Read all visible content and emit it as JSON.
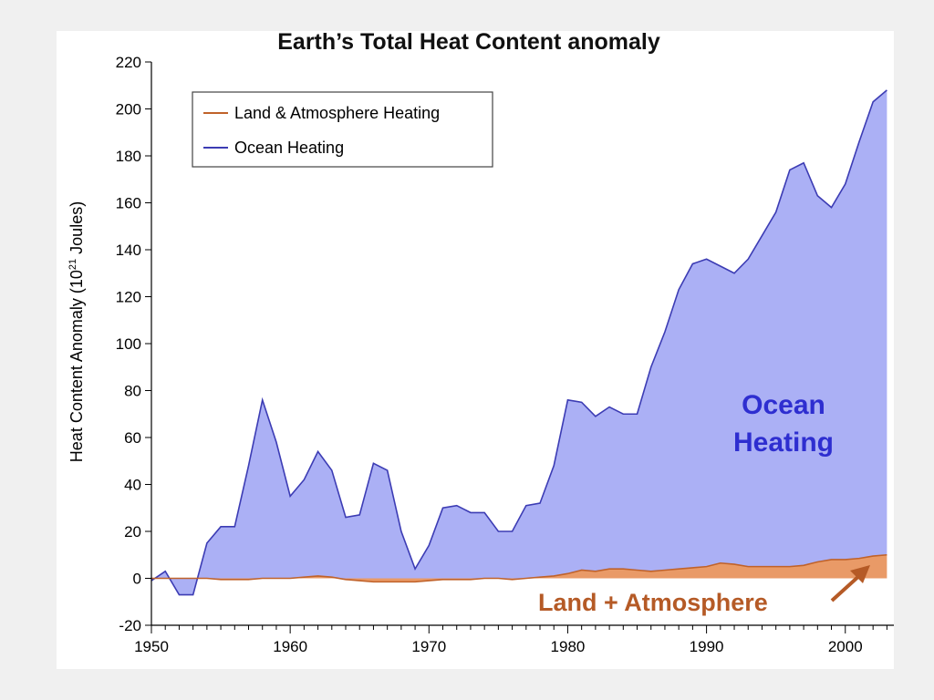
{
  "chart_data": {
    "type": "area",
    "title": "Earth’s Total Heat Content anomaly",
    "ylabel": "Heat Content Anomaly (10",
    "ylabel_superscript": "21",
    "ylabel_tail": " Joules)",
    "xlabel": "",
    "xlim": [
      1950,
      2003.5
    ],
    "ylim": [
      -20,
      220
    ],
    "x_ticks": [
      1950,
      1960,
      1970,
      1980,
      1990,
      2000
    ],
    "y_ticks": [
      -20,
      0,
      20,
      40,
      60,
      80,
      100,
      120,
      140,
      160,
      180,
      200,
      220
    ],
    "grid": false,
    "legend": {
      "placement": "top-left",
      "entries": [
        {
          "name": "Land & Atmosphere Heating",
          "color": "#c0622a"
        },
        {
          "name": "Ocean Heating",
          "color": "#3c3cb4"
        }
      ]
    },
    "series": [
      {
        "name": "Land & Atmosphere Heating",
        "line_color": "#c0622a",
        "fill_color": "#e99a67",
        "x": [
          1950,
          1951,
          1952,
          1953,
          1954,
          1955,
          1956,
          1957,
          1958,
          1959,
          1960,
          1961,
          1962,
          1963,
          1964,
          1965,
          1966,
          1967,
          1968,
          1969,
          1970,
          1971,
          1972,
          1973,
          1974,
          1975,
          1976,
          1977,
          1978,
          1979,
          1980,
          1981,
          1982,
          1983,
          1984,
          1985,
          1986,
          1987,
          1988,
          1989,
          1990,
          1991,
          1992,
          1993,
          1994,
          1995,
          1996,
          1997,
          1998,
          1999,
          2000,
          2001,
          2002,
          2003
        ],
        "values": [
          0,
          0,
          0,
          0,
          0,
          -0.5,
          -0.5,
          -0.5,
          0,
          0,
          0,
          0.5,
          1,
          0.5,
          -0.5,
          -1,
          -1.5,
          -1.5,
          -1.5,
          -1.5,
          -1,
          -0.5,
          -0.5,
          -0.5,
          0,
          0,
          -0.5,
          0,
          0.5,
          1,
          2,
          3.5,
          3,
          4,
          4,
          3.5,
          3,
          3.5,
          4,
          4.5,
          5,
          6.5,
          6,
          5,
          5,
          5,
          5,
          5.5,
          7,
          8,
          8,
          8.5,
          9.5,
          10
        ]
      },
      {
        "name": "Ocean Heating",
        "line_color": "#3c3cb4",
        "fill_color": "#abb0f5",
        "x": [
          1950,
          1951,
          1952,
          1953,
          1954,
          1955,
          1956,
          1957,
          1958,
          1959,
          1960,
          1961,
          1962,
          1963,
          1964,
          1965,
          1966,
          1967,
          1968,
          1969,
          1970,
          1971,
          1972,
          1973,
          1974,
          1975,
          1976,
          1977,
          1978,
          1979,
          1980,
          1981,
          1982,
          1983,
          1984,
          1985,
          1986,
          1987,
          1988,
          1989,
          1990,
          1991,
          1992,
          1993,
          1994,
          1995,
          1996,
          1997,
          1998,
          1999,
          2000,
          2001,
          2002,
          2003
        ],
        "values": [
          -1,
          3,
          -7,
          -7,
          15,
          22,
          22,
          48,
          76,
          58,
          35,
          42,
          54,
          46,
          26,
          27,
          49,
          46,
          20,
          4,
          14,
          30,
          31,
          28,
          28,
          20,
          20,
          31,
          32,
          48,
          76,
          75,
          69,
          73,
          70,
          70,
          90,
          105,
          123,
          134,
          136,
          133,
          130,
          136,
          146,
          156,
          174,
          177,
          163,
          158,
          168,
          186,
          203,
          208
        ]
      }
    ],
    "annotations": [
      {
        "text": "Ocean",
        "color": "#2e2ed0"
      },
      {
        "text": "Heating",
        "color": "#2e2ed0"
      },
      {
        "text": "Land + Atmosphere",
        "color": "#b55a26"
      }
    ]
  }
}
